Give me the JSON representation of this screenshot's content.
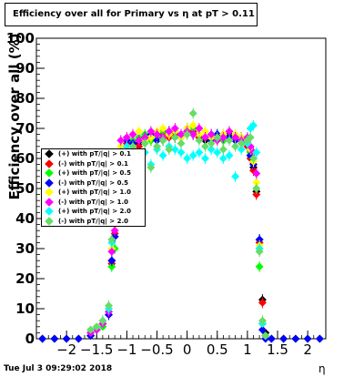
{
  "chart_data": {
    "type": "scatter",
    "title": "Efficiency over all for Primary vs   η at pT > 0.11",
    "xlabel": "η",
    "ylabel": "Efficiency over all (%)",
    "xlim": [
      -2.5,
      2.3
    ],
    "ylim": [
      0,
      100
    ],
    "x_ticks": [
      -2,
      -1.5,
      -1,
      -0.5,
      0,
      0.5,
      1,
      1.5,
      2
    ],
    "x_tick_labels": [
      "−2",
      "−1.5",
      "−1",
      "−0.5",
      "0",
      "0.5",
      "1",
      "1.5",
      "2"
    ],
    "y_ticks": [
      0,
      10,
      20,
      30,
      40,
      50,
      60,
      70,
      80,
      90,
      100
    ],
    "y_tick_labels": [
      "0",
      "10",
      "20",
      "30",
      "40",
      "50",
      "60",
      "70",
      "80",
      "90",
      "100"
    ],
    "grid": true,
    "legend_position": "left-middle",
    "series": [
      {
        "name": "(+) with pT/|q| > 0.1",
        "color": "#000000",
        "x": [
          -2.4,
          -2.2,
          -2.0,
          -1.8,
          -1.6,
          -1.5,
          -1.4,
          -1.3,
          -1.25,
          -1.2,
          -1.15,
          -1.1,
          -1.0,
          -0.9,
          -0.8,
          -0.7,
          -0.6,
          -0.5,
          -0.4,
          -0.3,
          -0.2,
          -0.1,
          0.0,
          0.1,
          0.2,
          0.3,
          0.4,
          0.5,
          0.6,
          0.7,
          0.8,
          0.9,
          1.0,
          1.05,
          1.1,
          1.15,
          1.2,
          1.25,
          1.3,
          1.4,
          1.6,
          1.8,
          2.0,
          2.2
        ],
        "y": [
          0,
          0,
          0,
          0,
          1,
          3,
          5,
          9,
          26,
          34,
          48,
          62,
          66,
          64,
          65,
          66,
          67,
          68,
          66,
          68,
          69,
          67,
          70,
          68,
          67,
          66,
          68,
          67,
          66,
          68,
          66,
          67,
          65,
          61,
          57,
          49,
          33,
          13,
          2,
          0,
          0,
          0,
          0,
          0
        ]
      },
      {
        "name": "(-) with pT/|q| > 0.1",
        "color": "#ff0000",
        "x": [
          -2.4,
          -2.2,
          -2.0,
          -1.8,
          -1.6,
          -1.5,
          -1.4,
          -1.3,
          -1.25,
          -1.2,
          -1.15,
          -1.1,
          -1.0,
          -0.9,
          -0.8,
          -0.7,
          -0.6,
          -0.5,
          -0.4,
          -0.3,
          -0.2,
          -0.1,
          0.0,
          0.1,
          0.2,
          0.3,
          0.4,
          0.5,
          0.6,
          0.7,
          0.8,
          0.9,
          1.0,
          1.05,
          1.1,
          1.15,
          1.2,
          1.25,
          1.3,
          1.4,
          1.6,
          1.8,
          2.0,
          2.2
        ],
        "y": [
          0,
          0,
          0,
          0,
          1,
          3,
          5,
          8,
          25,
          35,
          50,
          55,
          65,
          66,
          64,
          67,
          66,
          67,
          68,
          67,
          68,
          68,
          69,
          69,
          67,
          67,
          66,
          67,
          68,
          67,
          66,
          66,
          64,
          60,
          56,
          48,
          32,
          12,
          1,
          0,
          0,
          0,
          0,
          0
        ]
      },
      {
        "name": "(+) with pT/|q| > 0.5",
        "color": "#00ff00",
        "x": [
          -2.4,
          -2.2,
          -2.0,
          -1.8,
          -1.6,
          -1.5,
          -1.4,
          -1.3,
          -1.25,
          -1.2,
          -1.15,
          -1.1,
          -1.0,
          -0.9,
          -0.8,
          -0.7,
          -0.6,
          -0.5,
          -0.4,
          -0.3,
          -0.2,
          -0.1,
          0.0,
          0.1,
          0.2,
          0.3,
          0.4,
          0.5,
          0.6,
          0.7,
          0.8,
          0.9,
          1.0,
          1.05,
          1.1,
          1.15,
          1.2,
          1.25,
          1.3,
          1.4,
          1.6,
          1.8,
          2.0,
          2.2
        ],
        "y": [
          0,
          0,
          0,
          0,
          2,
          3,
          4,
          9,
          24,
          30,
          45,
          62,
          67,
          66,
          67,
          68,
          66,
          67,
          69,
          68,
          67,
          68,
          68,
          70,
          68,
          67,
          67,
          68,
          66,
          67,
          67,
          65,
          66,
          62,
          60,
          55,
          24,
          5,
          1,
          0,
          0,
          0,
          0,
          0
        ]
      },
      {
        "name": "(-) with pT/|q| > 0.5",
        "color": "#0000ff",
        "x": [
          -2.4,
          -2.2,
          -2.0,
          -1.8,
          -1.6,
          -1.5,
          -1.4,
          -1.3,
          -1.25,
          -1.2,
          -1.15,
          -1.1,
          -1.0,
          -0.9,
          -0.8,
          -0.7,
          -0.6,
          -0.5,
          -0.4,
          -0.3,
          -0.2,
          -0.1,
          0.0,
          0.1,
          0.2,
          0.3,
          0.4,
          0.5,
          0.6,
          0.7,
          0.8,
          0.9,
          1.0,
          1.05,
          1.1,
          1.15,
          1.2,
          1.25,
          1.3,
          1.4,
          1.6,
          1.8,
          2.0,
          2.2
        ],
        "y": [
          0,
          0,
          0,
          0,
          1,
          3,
          5,
          8,
          26,
          34,
          47,
          60,
          66,
          65,
          66,
          67,
          68,
          66,
          67,
          69,
          67,
          68,
          69,
          68,
          68,
          67,
          66,
          68,
          67,
          67,
          66,
          66,
          65,
          61,
          58,
          50,
          33,
          3,
          0,
          0,
          0,
          0,
          0,
          0
        ]
      },
      {
        "name": "(+) with pT/|q| > 1.0",
        "color": "#ffff00",
        "x": [
          -1.6,
          -1.5,
          -1.4,
          -1.3,
          -1.25,
          -1.2,
          -1.15,
          -1.1,
          -1.0,
          -0.9,
          -0.8,
          -0.7,
          -0.6,
          -0.5,
          -0.4,
          -0.3,
          -0.2,
          -0.1,
          0.0,
          0.1,
          0.2,
          0.3,
          0.4,
          0.5,
          0.6,
          0.7,
          0.8,
          0.9,
          1.0,
          1.05,
          1.1,
          1.15,
          1.2,
          1.25,
          1.3
        ],
        "y": [
          2,
          4,
          5,
          10,
          30,
          38,
          52,
          64,
          67,
          68,
          69,
          66,
          67,
          69,
          70,
          68,
          69,
          67,
          70,
          71,
          68,
          69,
          67,
          66,
          68,
          69,
          68,
          67,
          66,
          63,
          59,
          52,
          31,
          6,
          1
        ]
      },
      {
        "name": "(-) with pT/|q| > 1.0",
        "color": "#ff00ff",
        "x": [
          -1.6,
          -1.5,
          -1.4,
          -1.3,
          -1.25,
          -1.2,
          -1.15,
          -1.1,
          -1.0,
          -0.9,
          -0.8,
          -0.7,
          -0.6,
          -0.5,
          -0.4,
          -0.3,
          -0.2,
          -0.1,
          0.0,
          0.1,
          0.2,
          0.3,
          0.4,
          0.5,
          0.6,
          0.7,
          0.8,
          0.9,
          1.0,
          1.05,
          1.1,
          1.15,
          1.2,
          1.25,
          1.3
        ],
        "y": [
          2,
          3,
          5,
          9,
          29,
          36,
          50,
          66,
          67,
          68,
          66,
          67,
          69,
          68,
          67,
          69,
          70,
          68,
          69,
          68,
          70,
          67,
          68,
          66,
          67,
          69,
          67,
          66,
          67,
          64,
          62,
          55,
          30,
          5,
          1
        ]
      },
      {
        "name": "(+) with pT/|q| > 2.0",
        "color": "#00ffff",
        "x": [
          -1.6,
          -1.5,
          -1.4,
          -1.3,
          -1.25,
          -1.2,
          -1.15,
          -1.1,
          -1.0,
          -0.9,
          -0.8,
          -0.7,
          -0.6,
          -0.5,
          -0.4,
          -0.3,
          -0.2,
          -0.1,
          0.0,
          0.1,
          0.2,
          0.3,
          0.4,
          0.5,
          0.6,
          0.7,
          0.8,
          0.9,
          1.0,
          1.05,
          1.1,
          1.15,
          1.2,
          1.25,
          1.3
        ],
        "y": [
          3,
          4,
          6,
          10,
          32,
          40,
          53,
          62,
          64,
          63,
          60,
          62,
          58,
          63,
          61,
          64,
          63,
          62,
          60,
          61,
          62,
          60,
          63,
          62,
          60,
          61,
          54,
          63,
          65,
          70,
          71,
          62,
          30,
          5,
          1
        ]
      },
      {
        "name": "(-) with pT/|q| > 2.0",
        "color": "#66dd66",
        "x": [
          -1.6,
          -1.5,
          -1.4,
          -1.3,
          -1.25,
          -1.2,
          -1.15,
          -1.1,
          -1.0,
          -0.9,
          -0.8,
          -0.7,
          -0.6,
          -0.5,
          -0.4,
          -0.3,
          -0.2,
          -0.1,
          0.0,
          0.1,
          0.2,
          0.3,
          0.4,
          0.5,
          0.6,
          0.7,
          0.8,
          0.9,
          1.0,
          1.05,
          1.1,
          1.15,
          1.2,
          1.25,
          1.3
        ],
        "y": [
          3,
          4,
          6,
          11,
          33,
          41,
          55,
          60,
          62,
          64,
          61,
          65,
          57,
          64,
          66,
          63,
          67,
          65,
          68,
          75,
          66,
          64,
          65,
          67,
          63,
          66,
          64,
          65,
          66,
          67,
          60,
          50,
          29,
          6,
          1
        ]
      }
    ]
  },
  "footer": {
    "timestamp": "Tue Jul  3 09:29:02 2018"
  },
  "colors": {
    "background": "#ffffff",
    "axis": "#000000",
    "grid": "#000000"
  }
}
